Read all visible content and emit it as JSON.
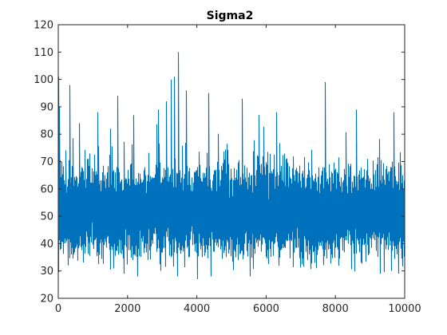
{
  "chart_data": {
    "type": "line",
    "title": "Sigma2",
    "xlabel": "",
    "ylabel": "",
    "xlim": [
      0,
      10000
    ],
    "ylim": [
      20,
      120
    ],
    "xticks": [
      0,
      2000,
      4000,
      6000,
      8000,
      10000
    ],
    "yticks": [
      20,
      30,
      40,
      50,
      60,
      70,
      80,
      90,
      100,
      110,
      120
    ],
    "grid": false,
    "series": [
      {
        "color": "#0072BD",
        "n_samples": 10000,
        "mean": 51,
        "typical_band": [
          38,
          66
        ],
        "peaks": [
          {
            "x": 5,
            "y": 101
          },
          {
            "x": 40,
            "y": 90
          },
          {
            "x": 330,
            "y": 98
          },
          {
            "x": 600,
            "y": 84
          },
          {
            "x": 1150,
            "y": 88
          },
          {
            "x": 1500,
            "y": 82
          },
          {
            "x": 1710,
            "y": 94
          },
          {
            "x": 2170,
            "y": 87
          },
          {
            "x": 2900,
            "y": 89
          },
          {
            "x": 3120,
            "y": 92
          },
          {
            "x": 3250,
            "y": 100
          },
          {
            "x": 3360,
            "y": 101
          },
          {
            "x": 3460,
            "y": 110
          },
          {
            "x": 3700,
            "y": 96
          },
          {
            "x": 4350,
            "y": 95
          },
          {
            "x": 5300,
            "y": 93
          },
          {
            "x": 5800,
            "y": 87
          },
          {
            "x": 6300,
            "y": 88
          },
          {
            "x": 7700,
            "y": 99
          },
          {
            "x": 8600,
            "y": 89
          },
          {
            "x": 9680,
            "y": 88
          }
        ],
        "troughs": [
          {
            "x": 1900,
            "y": 29
          },
          {
            "x": 3440,
            "y": 28
          },
          {
            "x": 4020,
            "y": 27
          },
          {
            "x": 4420,
            "y": 28
          },
          {
            "x": 5550,
            "y": 28
          },
          {
            "x": 9300,
            "y": 29
          },
          {
            "x": 9830,
            "y": 29
          }
        ]
      }
    ]
  }
}
